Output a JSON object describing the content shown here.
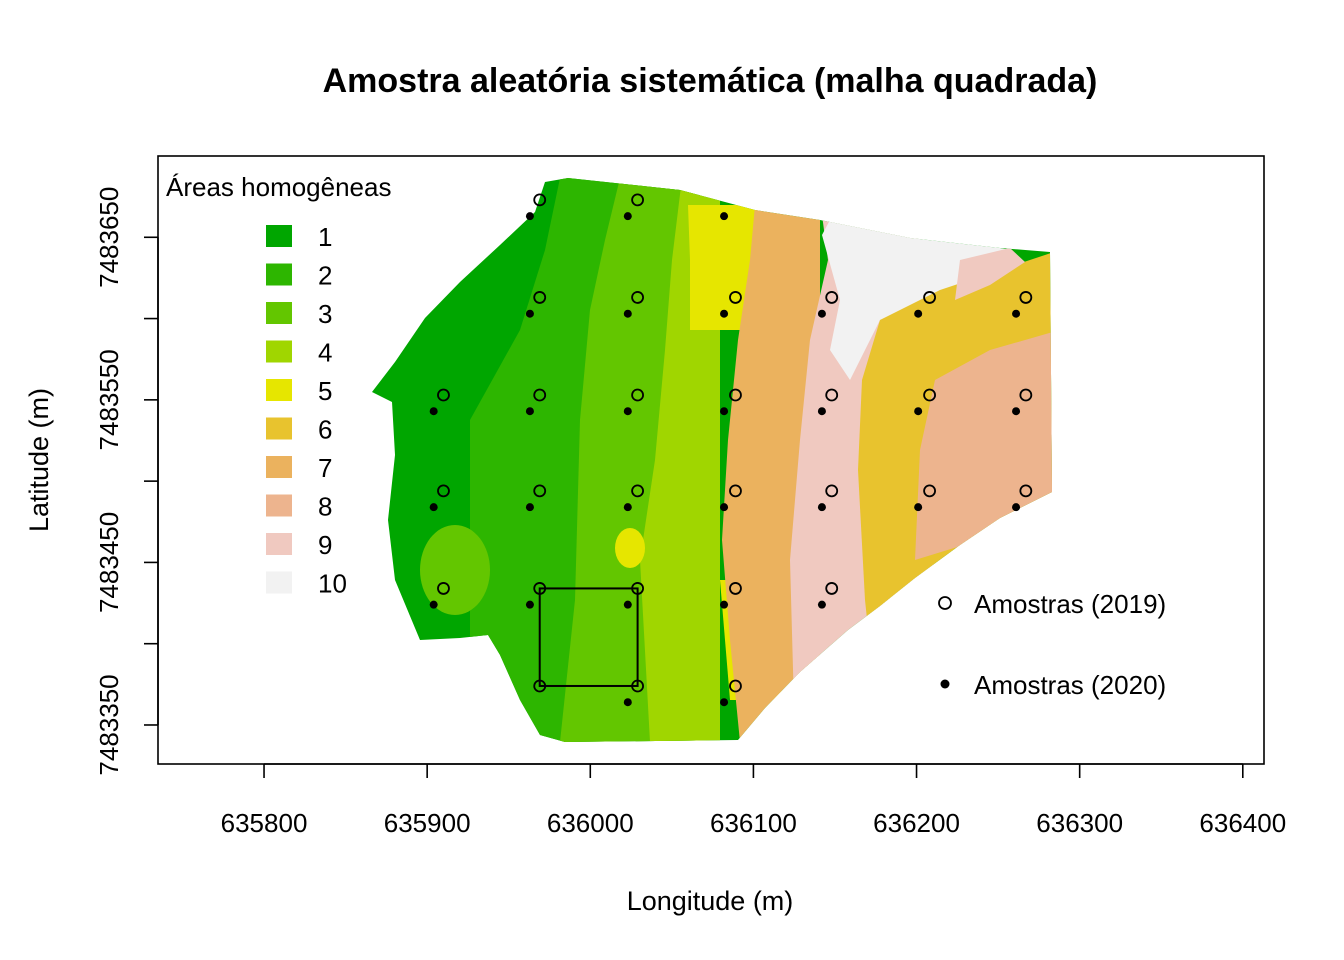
{
  "chart_data": {
    "type": "map",
    "title": "Amostra aleatória sistemática (malha quadrada)",
    "xlabel": "Longitude (m)",
    "ylabel": "Latitude (m)",
    "xlim": [
      635735,
      636413
    ],
    "ylim": [
      7483326,
      7483700
    ],
    "x_ticks": [
      635800,
      635900,
      636000,
      636100,
      636200,
      636300,
      636400
    ],
    "y_ticks": [
      7483350,
      7483400,
      7483450,
      7483500,
      7483550,
      7483600,
      7483650
    ],
    "y_tick_labels_shown": [
      "7483350",
      "7483450",
      "7483550",
      "7483650"
    ],
    "legend_zones": {
      "title": "Áreas homogêneas",
      "items": [
        {
          "label": "1",
          "color": "#00A600"
        },
        {
          "label": "2",
          "color": "#2DB600"
        },
        {
          "label": "3",
          "color": "#63C600"
        },
        {
          "label": "4",
          "color": "#A0D600"
        },
        {
          "label": "5",
          "color": "#E6E600"
        },
        {
          "label": "6",
          "color": "#E8C32E"
        },
        {
          "label": "7",
          "color": "#EBB25E"
        },
        {
          "label": "8",
          "color": "#EDB48E"
        },
        {
          "label": "9",
          "color": "#F0C9C0"
        },
        {
          "label": "10",
          "color": "#F2F2F2"
        }
      ]
    },
    "legend_points": [
      {
        "label": "Amostras (2019)",
        "symbol": "open-circle"
      },
      {
        "label": "Amostras (2020)",
        "symbol": "filled-dot"
      }
    ],
    "samples_2019": [
      [
        635969,
        7483673
      ],
      [
        636029,
        7483673
      ],
      [
        635969,
        7483613
      ],
      [
        636029,
        7483613
      ],
      [
        636089,
        7483613
      ],
      [
        636148,
        7483613
      ],
      [
        636208,
        7483613
      ],
      [
        636267,
        7483613
      ],
      [
        635910,
        7483553
      ],
      [
        635969,
        7483553
      ],
      [
        636029,
        7483553
      ],
      [
        636089,
        7483553
      ],
      [
        636148,
        7483553
      ],
      [
        636208,
        7483553
      ],
      [
        636267,
        7483553
      ],
      [
        635910,
        7483494
      ],
      [
        635969,
        7483494
      ],
      [
        636029,
        7483494
      ],
      [
        636089,
        7483494
      ],
      [
        636148,
        7483494
      ],
      [
        636208,
        7483494
      ],
      [
        636267,
        7483494
      ],
      [
        635910,
        7483434
      ],
      [
        635969,
        7483434
      ],
      [
        636029,
        7483434
      ],
      [
        636089,
        7483434
      ],
      [
        636148,
        7483434
      ],
      [
        635969,
        7483374
      ],
      [
        636029,
        7483374
      ],
      [
        636089,
        7483374
      ]
    ],
    "samples_2020": [
      [
        635963,
        7483663
      ],
      [
        636023,
        7483663
      ],
      [
        636082,
        7483663
      ],
      [
        635963,
        7483603
      ],
      [
        636023,
        7483603
      ],
      [
        636082,
        7483603
      ],
      [
        636142,
        7483603
      ],
      [
        636201,
        7483603
      ],
      [
        636261,
        7483603
      ],
      [
        635904,
        7483543
      ],
      [
        635963,
        7483543
      ],
      [
        636023,
        7483543
      ],
      [
        636082,
        7483543
      ],
      [
        636142,
        7483543
      ],
      [
        636201,
        7483543
      ],
      [
        636261,
        7483543
      ],
      [
        635904,
        7483484
      ],
      [
        635963,
        7483484
      ],
      [
        636023,
        7483484
      ],
      [
        636082,
        7483484
      ],
      [
        636142,
        7483484
      ],
      [
        636201,
        7483484
      ],
      [
        636261,
        7483484
      ],
      [
        635904,
        7483424
      ],
      [
        635963,
        7483424
      ],
      [
        636023,
        7483424
      ],
      [
        636082,
        7483424
      ],
      [
        636142,
        7483424
      ],
      [
        636023,
        7483364
      ],
      [
        636082,
        7483364
      ]
    ],
    "highlight_square": [
      635969,
      7483374,
      636029,
      7483434
    ]
  }
}
